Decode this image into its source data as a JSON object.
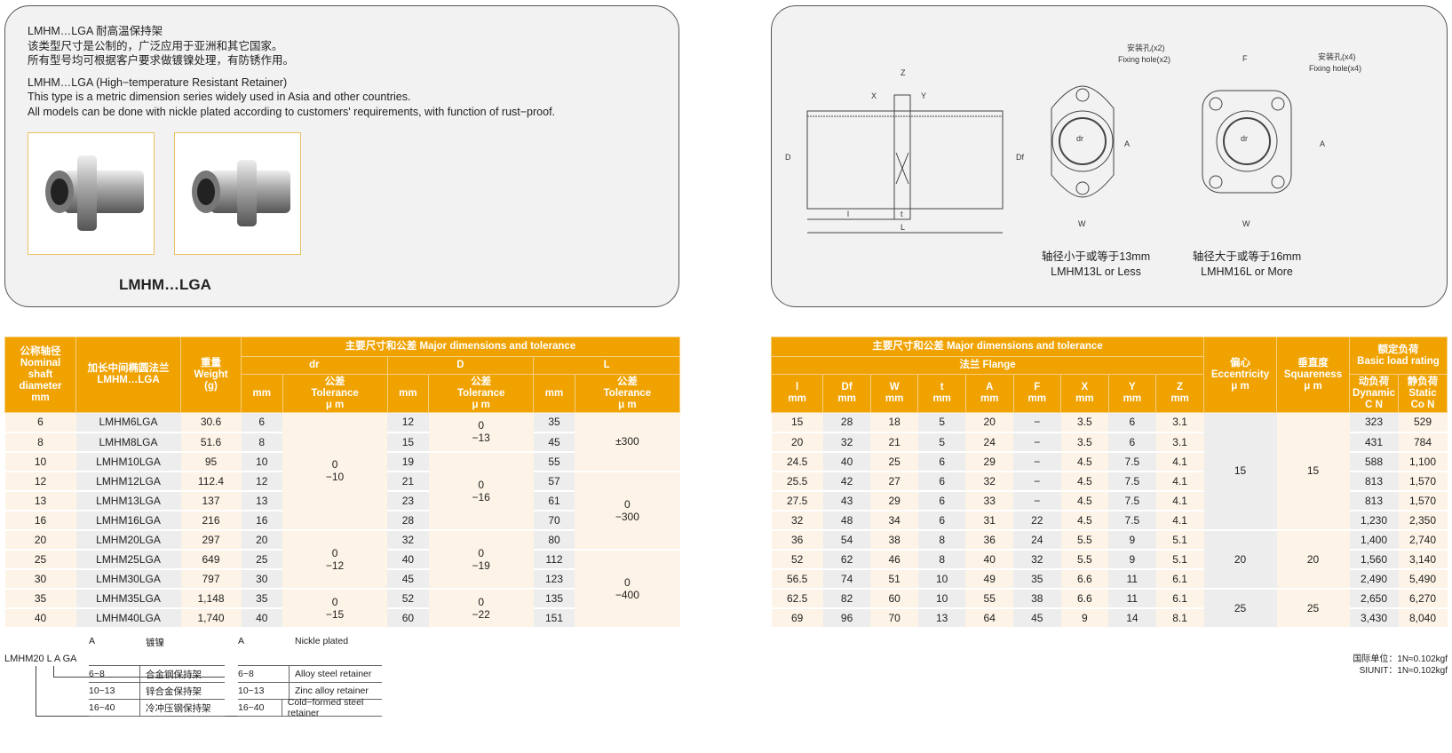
{
  "intro": {
    "cn_title": "LMHM…LGA 耐高温保持架",
    "cn_line1": "该类型尺寸是公制的，广泛应用于亚洲和其它国家。",
    "cn_line2": "所有型号均可根据客户要求做镀镍处理，有防锈作用。",
    "en_title": "LMHM…LGA (High−temperature Resistant Retainer)",
    "en_line1": "This type is a metric dimension series widely used in Asia and other countries.",
    "en_line2": "All models can be done with nickle plated according to customers' requirements, with function of rust−proof.",
    "product_label": "LMHM…LGA"
  },
  "drawing": {
    "labels": {
      "Z": "Z",
      "X": "X",
      "Y": "Y",
      "D": "D",
      "Df": "Df",
      "l": "l",
      "t": "t",
      "L": "L",
      "A": "A",
      "W": "W",
      "F": "F",
      "dr": "dr"
    },
    "fixing2_cn": "安装孔(x2)",
    "fixing2_en": "Fixing hole(x2)",
    "fixing4_cn": "安装孔(x4)",
    "fixing4_en": "Fixing hole(x4)",
    "cap1_cn": "轴径小于或等于13mm",
    "cap1_en": "LMHM13L or Less",
    "cap2_cn": "轴径大于或等于16mm",
    "cap2_en": "LMHM16L or More"
  },
  "table_left": {
    "h_nominal": [
      "公称轴径",
      "Nominal",
      "shaft",
      "diameter",
      "mm"
    ],
    "h_model": [
      "加长中间椭圆法兰",
      "LMHM…LGA"
    ],
    "h_weight": [
      "重量",
      "Weight",
      "(g)"
    ],
    "h_major": "主要尺寸和公差  Major dimensions and tolerance",
    "h_dr": "dr",
    "h_D": "D",
    "h_L": "L",
    "h_mm": "mm",
    "h_tol": [
      "公差",
      "Tolerance",
      "μ m"
    ],
    "rows": [
      [
        "6",
        "LMHM6LGA",
        "30.6",
        "6",
        "12",
        "35"
      ],
      [
        "8",
        "LMHM8LGA",
        "51.6",
        "8",
        "15",
        "45"
      ],
      [
        "10",
        "LMHM10LGA",
        "95",
        "10",
        "19",
        "55"
      ],
      [
        "12",
        "LMHM12LGA",
        "112.4",
        "12",
        "21",
        "57"
      ],
      [
        "13",
        "LMHM13LGA",
        "137",
        "13",
        "23",
        "61"
      ],
      [
        "16",
        "LMHM16LGA",
        "216",
        "16",
        "28",
        "70"
      ],
      [
        "20",
        "LMHM20LGA",
        "297",
        "20",
        "32",
        "80"
      ],
      [
        "25",
        "LMHM25LGA",
        "649",
        "25",
        "40",
        "112"
      ],
      [
        "30",
        "LMHM30LGA",
        "797",
        "30",
        "45",
        "123"
      ],
      [
        "35",
        "LMHM35LGA",
        "1,148",
        "35",
        "52",
        "135"
      ],
      [
        "40",
        "LMHM40LGA",
        "1,740",
        "40",
        "60",
        "151"
      ]
    ],
    "dr_tol": [
      [
        "0",
        "−10"
      ],
      [
        "0",
        "−12"
      ],
      [
        "0",
        "−15"
      ]
    ],
    "D_tol": [
      [
        "0",
        "−13"
      ],
      [
        "0",
        "−16"
      ],
      [
        "0",
        "−19"
      ],
      [
        "0",
        "−22"
      ]
    ],
    "L_tol": [
      [
        "±300"
      ],
      [
        "0",
        "−300"
      ],
      [
        "0",
        "−400"
      ]
    ]
  },
  "table_right": {
    "h_major": "主要尺寸和公差  Major dimensions and tolerance",
    "h_flange": "法兰  Flange",
    "cols": [
      "l",
      "Df",
      "W",
      "t",
      "A",
      "F",
      "X",
      "Y",
      "Z"
    ],
    "h_mm": "mm",
    "h_ecc": [
      "偏心",
      "Eccentricity",
      "μ m"
    ],
    "h_sq": [
      "垂直度",
      "Squareness",
      "μ m"
    ],
    "h_load": [
      "额定负荷",
      "Basic load rating"
    ],
    "h_dyn": [
      "动负荷",
      "Dynamic",
      "C N"
    ],
    "h_static": [
      "静负荷",
      "Static",
      "Co N"
    ],
    "rows": [
      [
        "15",
        "28",
        "18",
        "5",
        "20",
        "−",
        "3.5",
        "6",
        "3.1",
        "323",
        "529"
      ],
      [
        "20",
        "32",
        "21",
        "5",
        "24",
        "−",
        "3.5",
        "6",
        "3.1",
        "431",
        "784"
      ],
      [
        "24.5",
        "40",
        "25",
        "6",
        "29",
        "−",
        "4.5",
        "7.5",
        "4.1",
        "588",
        "1,100"
      ],
      [
        "25.5",
        "42",
        "27",
        "6",
        "32",
        "−",
        "4.5",
        "7.5",
        "4.1",
        "813",
        "1,570"
      ],
      [
        "27.5",
        "43",
        "29",
        "6",
        "33",
        "−",
        "4.5",
        "7.5",
        "4.1",
        "813",
        "1,570"
      ],
      [
        "32",
        "48",
        "34",
        "6",
        "31",
        "22",
        "4.5",
        "7.5",
        "4.1",
        "1,230",
        "2,350"
      ],
      [
        "36",
        "54",
        "38",
        "8",
        "36",
        "24",
        "5.5",
        "9",
        "5.1",
        "1,400",
        "2,740"
      ],
      [
        "52",
        "62",
        "46",
        "8",
        "40",
        "32",
        "5.5",
        "9",
        "5.1",
        "1,560",
        "3,140"
      ],
      [
        "56.5",
        "74",
        "51",
        "10",
        "49",
        "35",
        "6.6",
        "11",
        "6.1",
        "2,490",
        "5,490"
      ],
      [
        "62.5",
        "82",
        "60",
        "10",
        "55",
        "38",
        "6.6",
        "11",
        "6.1",
        "2,650",
        "6,270"
      ],
      [
        "69",
        "96",
        "70",
        "13",
        "64",
        "45",
        "9",
        "14",
        "8.1",
        "3,430",
        "8,040"
      ]
    ],
    "ecc": [
      "15",
      "20",
      "25"
    ],
    "sq": [
      "15",
      "20",
      "25"
    ]
  },
  "code": {
    "example": "LMHM20 L A GA",
    "cn": [
      [
        "A",
        "镀镍"
      ],
      [
        "6~8",
        "合金钢保持架"
      ],
      [
        "10~13",
        "锌合金保持架"
      ],
      [
        "16~40",
        "冷冲压钢保持架"
      ]
    ],
    "en": [
      [
        "A",
        "Nickle plated"
      ],
      [
        "6~8",
        "Alloy steel retainer"
      ],
      [
        "10~13",
        "Zinc alloy retainer"
      ],
      [
        "16~40",
        "Cold−formed steel retainer"
      ]
    ]
  },
  "units": {
    "cn": "国际单位：1N≈0.102kgf",
    "en": "SIUNIT：1N≈0.102kgf"
  }
}
